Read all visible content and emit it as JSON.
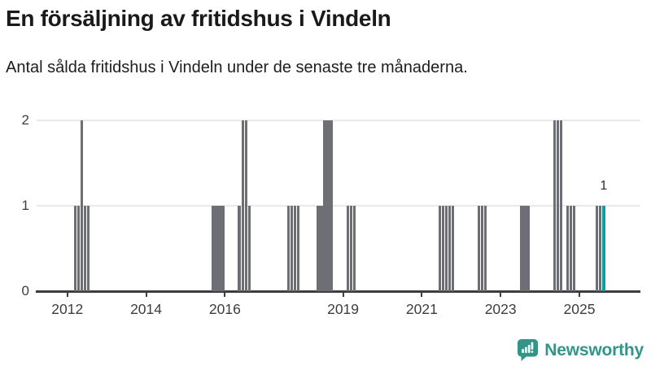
{
  "chart_data": {
    "type": "bar",
    "title": "En försäljning av fritidshus i Vindeln",
    "subtitle": "Antal sålda fritidshus i Vindeln under de senaste tre månaderna.",
    "xlabel": "",
    "ylabel": "",
    "x_domain": [
      2011.22,
      2026.55
    ],
    "ylim": [
      0,
      2
    ],
    "y_ticks": [
      0,
      1,
      2
    ],
    "x_ticks": [
      2012,
      2014,
      2016,
      2019,
      2021,
      2023,
      2025
    ],
    "grid": "horizontal",
    "legend": "none",
    "bar_unit": "month",
    "points": [
      {
        "date": "2012-03",
        "value": 1
      },
      {
        "date": "2012-04",
        "value": 1
      },
      {
        "date": "2012-05",
        "value": 2
      },
      {
        "date": "2012-06",
        "value": 1
      },
      {
        "date": "2012-07",
        "value": 1
      },
      {
        "date": "2015-09",
        "value": 1
      },
      {
        "date": "2015-10",
        "value": 1
      },
      {
        "date": "2015-11",
        "value": 1
      },
      {
        "date": "2015-12",
        "value": 1
      },
      {
        "date": "2016-05",
        "value": 1
      },
      {
        "date": "2016-06",
        "value": 2
      },
      {
        "date": "2016-07",
        "value": 2
      },
      {
        "date": "2016-08",
        "value": 1
      },
      {
        "date": "2017-08",
        "value": 1
      },
      {
        "date": "2017-09",
        "value": 1
      },
      {
        "date": "2017-10",
        "value": 1
      },
      {
        "date": "2017-11",
        "value": 1
      },
      {
        "date": "2018-05",
        "value": 1
      },
      {
        "date": "2018-06",
        "value": 1
      },
      {
        "date": "2018-07",
        "value": 2
      },
      {
        "date": "2018-08",
        "value": 2
      },
      {
        "date": "2018-09",
        "value": 2
      },
      {
        "date": "2019-02",
        "value": 1
      },
      {
        "date": "2019-03",
        "value": 1
      },
      {
        "date": "2019-04",
        "value": 1
      },
      {
        "date": "2021-06",
        "value": 1
      },
      {
        "date": "2021-07",
        "value": 1
      },
      {
        "date": "2021-08",
        "value": 1
      },
      {
        "date": "2021-09",
        "value": 1
      },
      {
        "date": "2021-10",
        "value": 1
      },
      {
        "date": "2022-06",
        "value": 1
      },
      {
        "date": "2022-07",
        "value": 1
      },
      {
        "date": "2022-08",
        "value": 1
      },
      {
        "date": "2023-07",
        "value": 1
      },
      {
        "date": "2023-08",
        "value": 1
      },
      {
        "date": "2023-09",
        "value": 1
      },
      {
        "date": "2024-05",
        "value": 2
      },
      {
        "date": "2024-06",
        "value": 2
      },
      {
        "date": "2024-07",
        "value": 2
      },
      {
        "date": "2024-09",
        "value": 1
      },
      {
        "date": "2024-10",
        "value": 1
      },
      {
        "date": "2024-11",
        "value": 1
      },
      {
        "date": "2025-06",
        "value": 1
      },
      {
        "date": "2025-07",
        "value": 1
      },
      {
        "date": "2025-08",
        "value": 1,
        "highlighted": true
      }
    ],
    "annotation": {
      "text": "1",
      "date": "2025-08"
    },
    "colors": {
      "bar": "#6e6e75",
      "highlight": "#0d9f9f",
      "grid": "#e9e9e9",
      "axis": "#3e3e3e",
      "tick_text": "#3d3d3d"
    }
  },
  "footer": {
    "brand": "Newsworthy",
    "brand_color": "#339488"
  }
}
